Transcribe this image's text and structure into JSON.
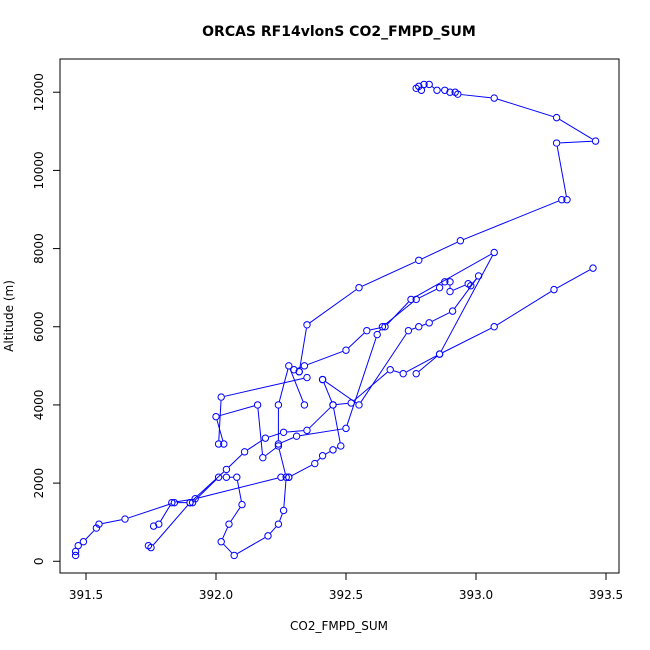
{
  "chart_data": {
    "type": "line",
    "title": "ORCAS RF14vlonS CO2_FMPD_SUM",
    "xlabel": "CO2_FMPD_SUM",
    "ylabel": "Altitude (m)",
    "xlim": [
      391.4,
      393.55
    ],
    "ylim": [
      -300,
      12850
    ],
    "xticks": [
      391.5,
      392.0,
      392.5,
      393.0,
      393.5
    ],
    "xtick_labels": [
      "391.5",
      "392.0",
      "392.5",
      "393.0",
      "393.5"
    ],
    "yticks": [
      0,
      2000,
      4000,
      6000,
      8000,
      10000,
      12000
    ],
    "ytick_labels": [
      "0",
      "2000",
      "4000",
      "6000",
      "8000",
      "10000",
      "12000"
    ],
    "color": "#0000ff",
    "marker": "open-circle",
    "grid": false,
    "legend": "none",
    "series": [
      {
        "x": [
          391.46,
          391.46,
          391.47,
          391.49,
          391.54,
          391.55,
          391.65,
          391.84,
          391.9,
          391.91,
          392.01,
          392.04,
          392.08,
          392.1,
          392.05,
          392.02,
          392.07,
          392.2,
          392.24,
          392.26,
          392.27,
          392.24,
          392.18,
          392.16,
          392.0,
          392.03,
          392.01,
          392.02,
          392.35
        ],
        "y": [
          150,
          250,
          400,
          500,
          850,
          950,
          1080,
          1500,
          1500,
          1500,
          2150,
          2150,
          2150,
          1450,
          950,
          500,
          150,
          650,
          950,
          1300,
          2150,
          2950,
          2650,
          4000,
          3700,
          3000,
          3000,
          4200,
          4700
        ]
      },
      {
        "x": [
          392.34,
          392.28,
          392.24,
          392.24,
          392.31,
          392.5,
          392.62,
          392.64,
          392.77,
          392.86,
          392.88,
          392.9,
          392.9,
          392.97,
          392.98,
          393.01,
          392.91,
          392.82,
          392.78,
          392.74,
          392.55,
          392.41
        ],
        "y": [
          4000,
          5000,
          4000,
          3000,
          3200,
          3400,
          5800,
          6000,
          6700,
          7000,
          7150,
          7150,
          6900,
          7100,
          7050,
          7300,
          6400,
          6100,
          6000,
          5900,
          4000,
          4650
        ]
      },
      {
        "x": [
          392.41,
          392.45,
          392.48,
          392.45,
          392.41,
          392.38,
          392.28,
          392.28,
          392.25,
          391.92,
          391.83,
          391.78,
          391.76
        ],
        "y": [
          4650,
          4000,
          2950,
          2850,
          2700,
          2500,
          2150,
          2150,
          2150,
          1600,
          1500,
          950,
          900
        ]
      },
      {
        "x": [
          391.74,
          391.75,
          391.9,
          392.04,
          392.11,
          392.19,
          392.26,
          392.35,
          392.45,
          392.52,
          392.67,
          392.72,
          392.86,
          393.07,
          393.3,
          393.45
        ],
        "y": [
          400,
          350,
          1500,
          2350,
          2800,
          3150,
          3300,
          3350,
          4000,
          4050,
          4900,
          4800,
          5300,
          6000,
          6950,
          7500
        ]
      },
      {
        "x": [
          392.77,
          392.86,
          393.07,
          392.75,
          392.65,
          392.58,
          392.5,
          392.34,
          392.3,
          392.32
        ],
        "y": [
          4800,
          5300,
          7900,
          6700,
          6000,
          5900,
          5400,
          5000,
          4900,
          4850
        ]
      },
      {
        "x": [
          392.32,
          392.35,
          392.55,
          392.78,
          392.94,
          393.33,
          393.35,
          393.31,
          393.46,
          393.31,
          393.07,
          392.93,
          392.92,
          392.9,
          392.88,
          392.85,
          392.82,
          392.79,
          392.8,
          392.78,
          392.77
        ],
        "y": [
          4850,
          6050,
          7000,
          7700,
          8200,
          9250,
          9250,
          10700,
          10750,
          11350,
          11850,
          11950,
          12000,
          12000,
          12050,
          12050,
          12200,
          12050,
          12200,
          12150,
          12100
        ]
      }
    ]
  }
}
